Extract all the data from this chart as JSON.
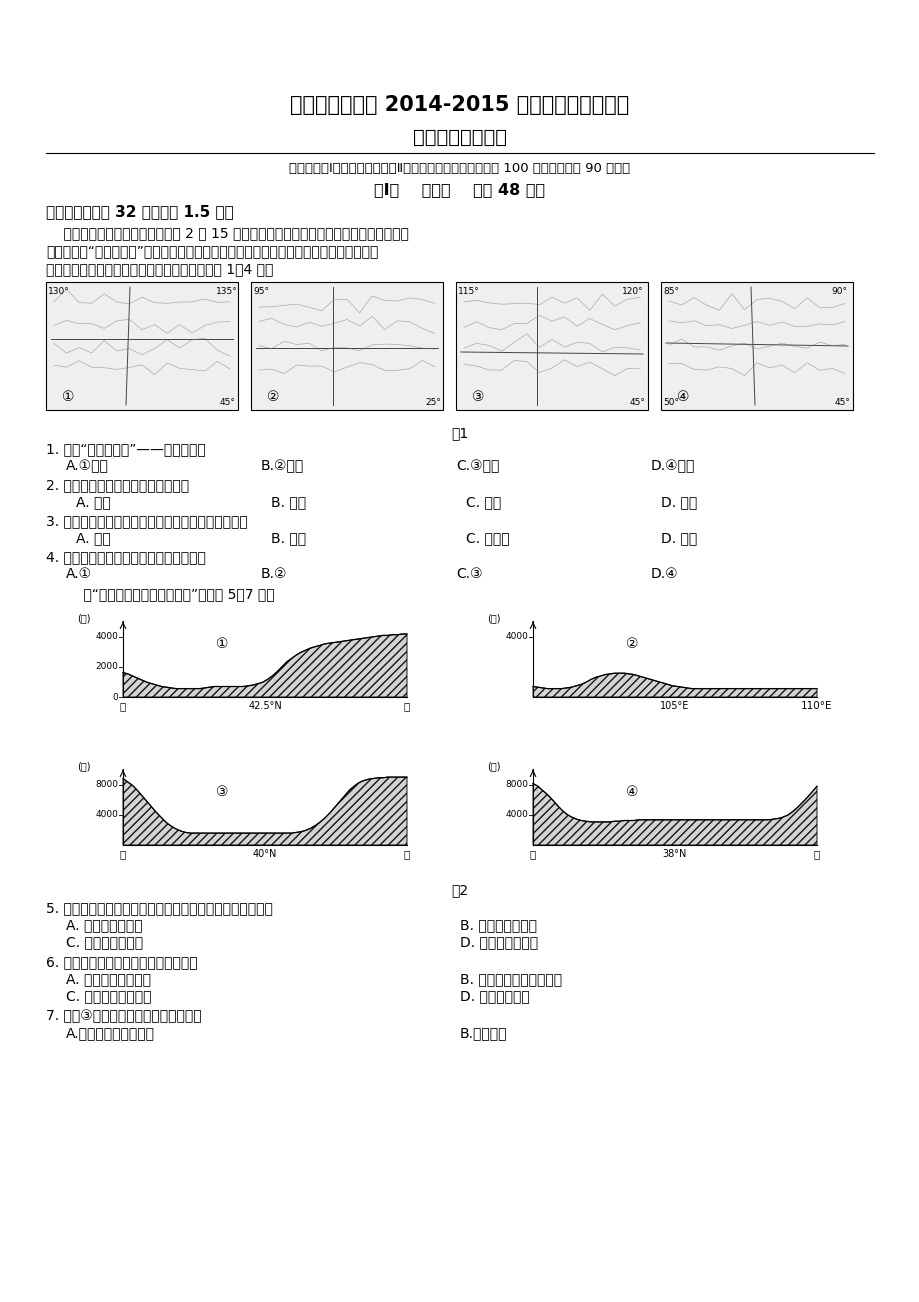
{
  "title1": "大连市第三中学 2014-2015 学年下学期期中考试",
  "title2": "高二（地理）试卷",
  "line1": "本试卷分第Ⅰ卷（选择题）和第Ⅱ卷（非选择题）两部分，共 100 分，考试用时 90 分钟。",
  "section_title": "第Ⅰ卷    选择题    （共 48 分）",
  "section1_header": "一、选择题（共 32 题，每题 1.5 分）",
  "passage_line1": "    某游客在日记中写道：北京时间 2 时 15 分，旭日的霉光就撒满了三江平原的乌苏镇。在",
  "passage_line2": "这个有我国“东方第一镇”之美誉的边境小镇的市场上，早已集聚了大量的、相邻国家的境",
  "passage_line3": "外商人进行木材、大豆、小麦等交易。据此回答 1～4 题。",
  "fig1_caption": "图1",
  "q1": "1. 我国“东方第一镇”——乌苏镇位于",
  "q1_a": "A.①图中",
  "q1_b": "B.②图中",
  "q1_c": "C.③图中",
  "q1_d": "D.④图中",
  "q2": "2. 依据日记内容判断，当时的季节是",
  "q2_a": "A. 春季",
  "q2_b": "B. 夏季",
  "q2_c": "C. 秋季",
  "q2_d": "D. 冬季",
  "q3": "3. 小镇市场上集聚的境外商人，最可能来自的邻国是",
  "q3_a": "A. 朝鲜",
  "q3_b": "B. 韩国",
  "q3_c": "C. 信罗斯",
  "q3_d": "D. 蒙古",
  "q4": "4. 四个序号代表的省份中跨经度最大的是",
  "q4_a": "A.①",
  "q4_b": "B.②",
  "q4_c": "C.③",
  "q4_d": "D.④",
  "intro5": "    读“我国四大盆地地形剖面图”，完成 5～7 题。",
  "fig2_caption": "图2",
  "q5": "5. 图中序号所代表的盆地与其所在省区的简称排列一致的是",
  "q5_a": "A. 新、川、新、青",
  "q5_b": "B. 新、新、川、青",
  "q5_c": "C. 新、新、青、川",
  "q5_d": "D. 新、川、新、藏",
  "q6": "6. 我国四大盆地自然资源的共同特点是",
  "q6_a": "A. 农业气候资源优越",
  "q6_b": "B. 石油、天然气资源丰富",
  "q6_c": "C. 金属矿产资源多样",
  "q6_d": "D. 水能资源丰富",
  "q7": "7. 关于③盆地农业特征的叙述正确的是",
  "q7_a": "A.灘溉农业和崝子农业",
  "q7_b": "B.高原牧业",
  "bg_color": "#ffffff",
  "text_color": "#000000",
  "map1_labels_top": [
    "130°",
    "135°"
  ],
  "map1_label_br": "45°",
  "map2_label_tl": "95°",
  "map2_label_br": "25°",
  "map3_labels_top": [
    "115°",
    "120°"
  ],
  "map3_label_br": "45°",
  "map4_labels_top": [
    "85°",
    "90°"
  ],
  "map4_label_bl": "50°",
  "map4_label_br": "45°"
}
